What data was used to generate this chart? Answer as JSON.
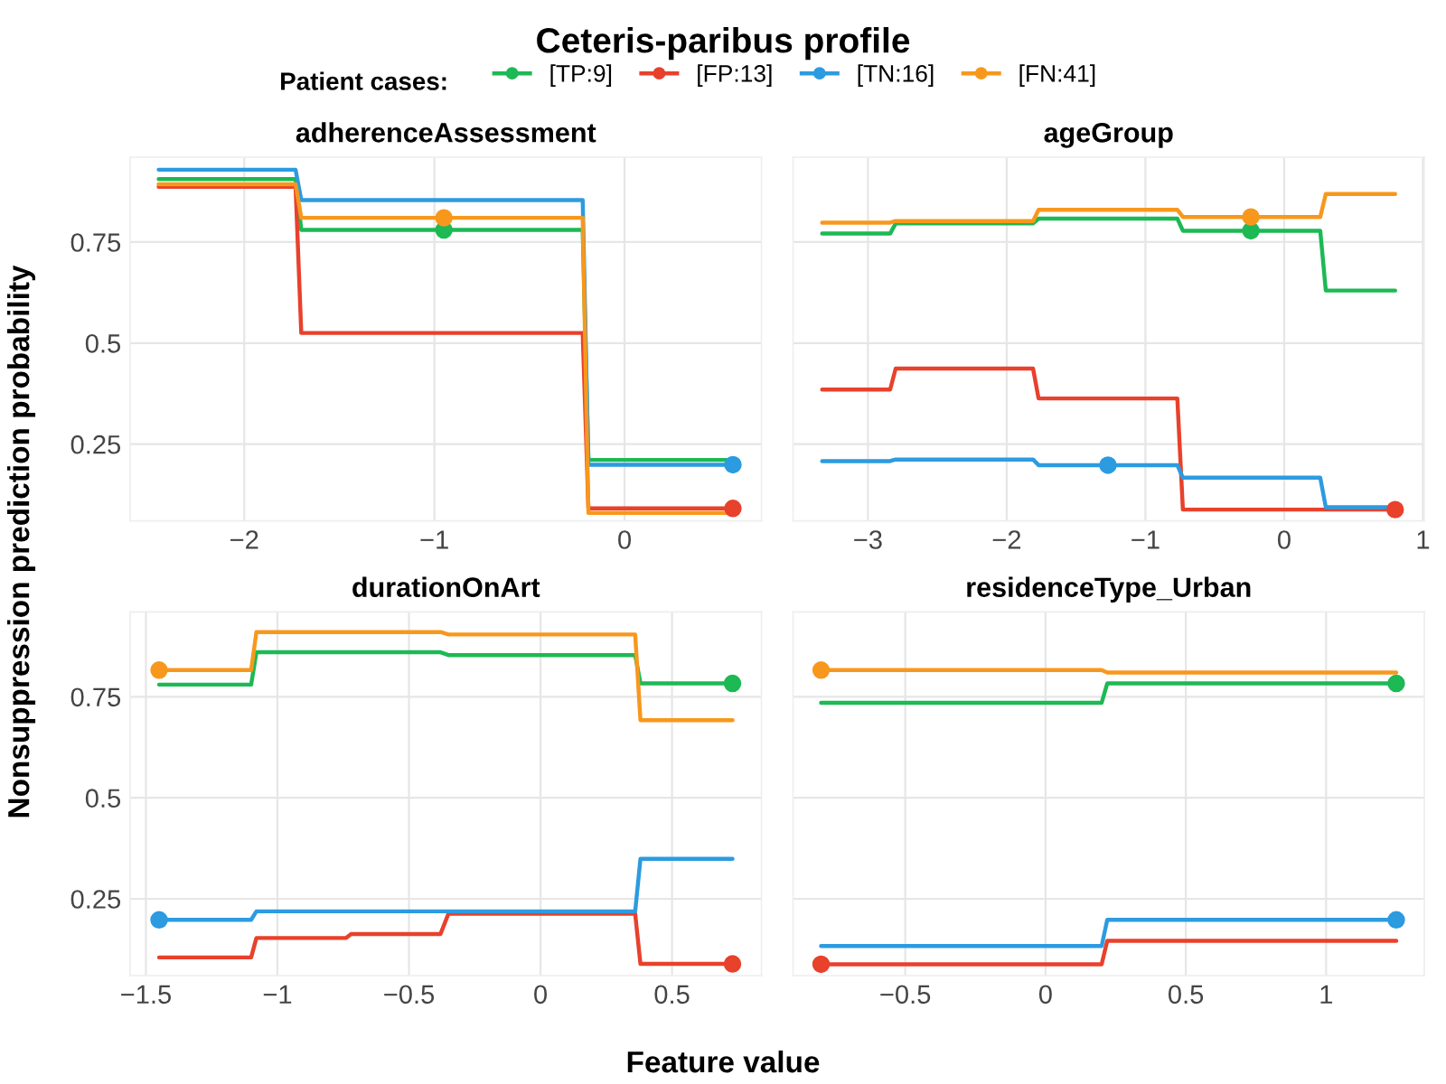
{
  "chart_data": [
    {
      "type": "line",
      "title": "adherenceAssessment",
      "annotations": [
        "Ceteris-paribus profile"
      ],
      "xlabel": "Feature value",
      "ylabel": "Nonsuppression prediction probability",
      "legend": "top",
      "legend_title": "Patient cases:",
      "grid": true,
      "xlim": [
        -2.6,
        0.72
      ],
      "xticks": [
        {
          "value": -2,
          "label": "−2"
        },
        {
          "value": -1,
          "label": "−1"
        },
        0
      ],
      "ylim": [
        0.06,
        0.96
      ],
      "yticks": [
        0.25,
        0.5,
        0.75
      ],
      "series": [
        {
          "name": "[TP:9]",
          "color": "#1db954",
          "x": [
            -2.45,
            -1.73,
            -1.7,
            -0.22,
            -0.19,
            0.57
          ],
          "values": [
            0.906,
            0.906,
            0.78,
            0.78,
            0.211,
            0.211
          ]
        },
        {
          "name": "[FP:13]",
          "color": "#e8412c",
          "x": [
            -2.45,
            -1.73,
            -1.7,
            -0.22,
            -0.19,
            0.57
          ],
          "values": [
            0.887,
            0.887,
            0.525,
            0.525,
            0.091,
            0.091
          ]
        },
        {
          "name": "[TN:16]",
          "color": "#2c9be0",
          "x": [
            -2.45,
            -1.73,
            -1.7,
            -0.22,
            -0.19,
            0.57
          ],
          "values": [
            0.929,
            0.929,
            0.854,
            0.854,
            0.199,
            0.199
          ]
        },
        {
          "name": "[FN:41]",
          "color": "#f7981d",
          "x": [
            -2.45,
            -1.73,
            -1.7,
            -0.22,
            -0.19,
            0.57
          ],
          "values": [
            0.893,
            0.893,
            0.81,
            0.81,
            0.08,
            0.08
          ]
        },
        {
          "type": "scatter",
          "color": "#1db954",
          "x": [
            -0.95
          ],
          "values": [
            0.78
          ]
        },
        {
          "type": "scatter",
          "color": "#e8412c",
          "x": [
            0.57
          ],
          "values": [
            0.091
          ]
        },
        {
          "type": "scatter",
          "color": "#2c9be0",
          "x": [
            0.57
          ],
          "values": [
            0.199
          ]
        },
        {
          "type": "scatter",
          "color": "#f7981d",
          "x": [
            -0.95
          ],
          "values": [
            0.81
          ]
        }
      ]
    },
    {
      "type": "line",
      "title": "ageGroup",
      "grid": true,
      "tick_labels": "x",
      "xlim": [
        -3.54,
        1.01
      ],
      "xticks": [
        {
          "value": -3,
          "label": "−3"
        },
        {
          "value": -2,
          "label": "−2"
        },
        {
          "value": -1,
          "label": "−1"
        },
        0,
        1
      ],
      "ylim": [
        0.06,
        0.96
      ],
      "yticks": [
        0.25,
        0.5,
        0.75
      ],
      "series": [
        {
          "color": "#1db954",
          "x": [
            -3.33,
            -2.84,
            -2.8,
            -1.81,
            -1.77,
            -0.77,
            -0.73,
            0.26,
            0.3,
            0.8
          ],
          "values": [
            0.771,
            0.771,
            0.796,
            0.796,
            0.808,
            0.808,
            0.778,
            0.778,
            0.63,
            0.63
          ]
        },
        {
          "color": "#e8412c",
          "x": [
            -3.33,
            -2.84,
            -2.8,
            -1.81,
            -1.77,
            -0.77,
            -0.73,
            0.8
          ],
          "values": [
            0.385,
            0.385,
            0.437,
            0.437,
            0.363,
            0.363,
            0.088,
            0.088
          ]
        },
        {
          "color": "#2c9be0",
          "x": [
            -3.33,
            -2.84,
            -2.8,
            -1.81,
            -1.77,
            -0.77,
            -0.73,
            0.26,
            0.3,
            0.8
          ],
          "values": [
            0.208,
            0.208,
            0.212,
            0.212,
            0.198,
            0.198,
            0.167,
            0.167,
            0.094,
            0.094
          ]
        },
        {
          "color": "#f7981d",
          "x": [
            -3.33,
            -2.84,
            -2.8,
            -1.81,
            -1.77,
            -0.77,
            -0.73,
            0.26,
            0.3,
            0.8
          ],
          "values": [
            0.798,
            0.798,
            0.802,
            0.802,
            0.83,
            0.83,
            0.812,
            0.812,
            0.869,
            0.869
          ]
        },
        {
          "type": "scatter",
          "color": "#1db954",
          "x": [
            -0.24
          ],
          "values": [
            0.778
          ]
        },
        {
          "type": "scatter",
          "color": "#e8412c",
          "x": [
            0.8
          ],
          "values": [
            0.088
          ]
        },
        {
          "type": "scatter",
          "color": "#2c9be0",
          "x": [
            -1.27
          ],
          "values": [
            0.198
          ]
        },
        {
          "type": "scatter",
          "color": "#f7981d",
          "x": [
            -0.24
          ],
          "values": [
            0.812
          ]
        }
      ]
    },
    {
      "type": "line",
      "title": "durationOnArt",
      "grid": true,
      "xlim": [
        -1.56,
        0.84
      ],
      "xticks": [
        {
          "value": -1.5,
          "label": "−1.5"
        },
        {
          "value": -1,
          "label": "−1"
        },
        {
          "value": -0.5,
          "label": "−0.5"
        },
        0,
        0.5
      ],
      "ylim": [
        0.06,
        0.96
      ],
      "yticks": [
        0.25,
        0.5,
        0.75
      ],
      "series": [
        {
          "color": "#1db954",
          "x": [
            -1.45,
            -1.1,
            -1.08,
            -0.38,
            -0.35,
            0.36,
            0.38,
            0.73
          ],
          "values": [
            0.78,
            0.78,
            0.86,
            0.86,
            0.853,
            0.853,
            0.783,
            0.783
          ]
        },
        {
          "color": "#e8412c",
          "x": [
            -1.45,
            -1.1,
            -1.08,
            -0.74,
            -0.72,
            -0.38,
            -0.35,
            0.36,
            0.38,
            0.73
          ],
          "values": [
            0.105,
            0.105,
            0.153,
            0.153,
            0.163,
            0.163,
            0.213,
            0.213,
            0.089,
            0.089
          ]
        },
        {
          "color": "#2c9be0",
          "x": [
            -1.45,
            -1.1,
            -1.08,
            0.36,
            0.38,
            0.73
          ],
          "values": [
            0.198,
            0.198,
            0.219,
            0.219,
            0.349,
            0.349
          ]
        },
        {
          "color": "#f7981d",
          "x": [
            -1.45,
            -1.1,
            -1.08,
            -0.38,
            -0.35,
            0.36,
            0.38,
            0.73
          ],
          "values": [
            0.816,
            0.816,
            0.91,
            0.91,
            0.904,
            0.904,
            0.692,
            0.692
          ]
        },
        {
          "type": "scatter",
          "color": "#1db954",
          "x": [
            0.73
          ],
          "values": [
            0.783
          ]
        },
        {
          "type": "scatter",
          "color": "#e8412c",
          "x": [
            0.73
          ],
          "values": [
            0.089
          ]
        },
        {
          "type": "scatter",
          "color": "#2c9be0",
          "x": [
            -1.45
          ],
          "values": [
            0.198
          ]
        },
        {
          "type": "scatter",
          "color": "#f7981d",
          "x": [
            -1.45
          ],
          "values": [
            0.816
          ]
        }
      ]
    },
    {
      "type": "line",
      "title": "residenceType_Urban",
      "grid": true,
      "tick_labels": "x",
      "xlim": [
        -0.9,
        1.35
      ],
      "xticks": [
        {
          "value": -0.5,
          "label": "−0.5"
        },
        0,
        0.5,
        1
      ],
      "ylim": [
        0.06,
        0.96
      ],
      "yticks": [
        0.25,
        0.5,
        0.75
      ],
      "series": [
        {
          "color": "#1db954",
          "x": [
            -0.8,
            0.2,
            0.22,
            1.25
          ],
          "values": [
            0.735,
            0.735,
            0.783,
            0.783
          ]
        },
        {
          "color": "#e8412c",
          "x": [
            -0.8,
            0.2,
            0.22,
            1.25
          ],
          "values": [
            0.088,
            0.088,
            0.146,
            0.146
          ]
        },
        {
          "color": "#2c9be0",
          "x": [
            -0.8,
            0.2,
            0.22,
            1.25
          ],
          "values": [
            0.133,
            0.133,
            0.198,
            0.198
          ]
        },
        {
          "color": "#f7981d",
          "x": [
            -0.8,
            0.2,
            0.22,
            1.25
          ],
          "values": [
            0.816,
            0.816,
            0.81,
            0.81
          ]
        },
        {
          "type": "scatter",
          "color": "#1db954",
          "x": [
            1.25
          ],
          "values": [
            0.783
          ]
        },
        {
          "type": "scatter",
          "color": "#e8412c",
          "x": [
            -0.8
          ],
          "values": [
            0.088
          ]
        },
        {
          "type": "scatter",
          "color": "#2c9be0",
          "x": [
            1.25
          ],
          "values": [
            0.198
          ]
        },
        {
          "type": "scatter",
          "color": "#f7981d",
          "x": [
            -0.8
          ],
          "values": [
            0.816
          ]
        }
      ]
    }
  ]
}
